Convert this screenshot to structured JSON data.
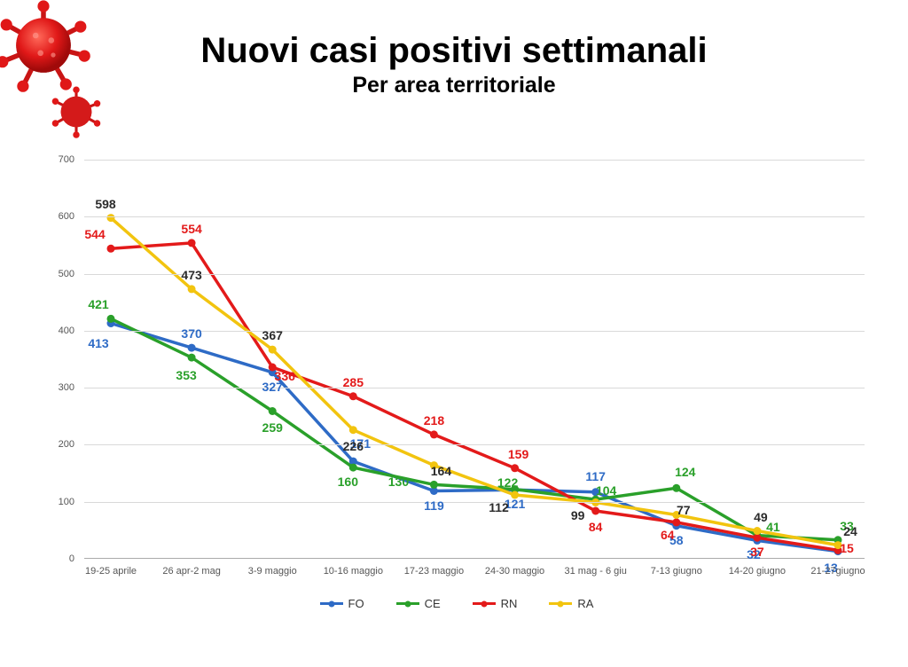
{
  "title": "Nuovi casi positivi settimanali",
  "subtitle": "Per area territoriale",
  "chart": {
    "type": "line",
    "background_color": "#ffffff",
    "grid_color": "#d9d9d9",
    "ylim": [
      0,
      700
    ],
    "ytick_step": 100,
    "categories": [
      "19-25 aprile",
      "26 apr-2 mag",
      "3-9 maggio",
      "10-16 maggio",
      "17-23 maggio",
      "24-30 maggio",
      "31 mag - 6 giu",
      "7-13 giugno",
      "14-20 giugno",
      "21-27giugno"
    ],
    "series": [
      {
        "name": "FO",
        "color": "#2e6bc6",
        "values": [
          413,
          370,
          327,
          171,
          119,
          121,
          117,
          58,
          32,
          13
        ],
        "label_dy": [
          22,
          -16,
          16,
          -20,
          16,
          16,
          -18,
          16,
          16,
          18
        ],
        "label_dx": [
          -14,
          0,
          0,
          8,
          0,
          0,
          0,
          0,
          -4,
          -8
        ]
      },
      {
        "name": "CE",
        "color": "#2aa02a",
        "values": [
          421,
          353,
          259,
          160,
          130,
          122,
          104,
          124,
          41,
          33
        ],
        "label_dy": [
          -16,
          20,
          18,
          16,
          -3,
          -8,
          -10,
          -18,
          -10,
          -16
        ],
        "label_dx": [
          -14,
          -6,
          0,
          -6,
          -40,
          -8,
          12,
          10,
          18,
          10
        ]
      },
      {
        "name": "RN",
        "color": "#e31a1a",
        "values": [
          544,
          554,
          336,
          285,
          218,
          159,
          84,
          64,
          37,
          15
        ],
        "label_dy": [
          -16,
          -16,
          10,
          -16,
          -16,
          -16,
          18,
          14,
          16,
          -2
        ],
        "label_dx": [
          -18,
          0,
          14,
          0,
          0,
          4,
          0,
          -10,
          0,
          10
        ]
      },
      {
        "name": "RA",
        "color": "#f2c40f",
        "label_color": "#2b2b2b",
        "values": [
          598,
          473,
          367,
          226,
          164,
          112,
          99,
          77,
          49,
          24
        ],
        "label_dy": [
          -16,
          -16,
          -16,
          18,
          6,
          14,
          15,
          -6,
          -16,
          -16
        ],
        "label_dx": [
          -6,
          0,
          0,
          0,
          8,
          -18,
          -20,
          8,
          4,
          14
        ]
      }
    ],
    "line_width": 3.5,
    "marker_radius": 4.5,
    "label_fontsize": 14
  }
}
